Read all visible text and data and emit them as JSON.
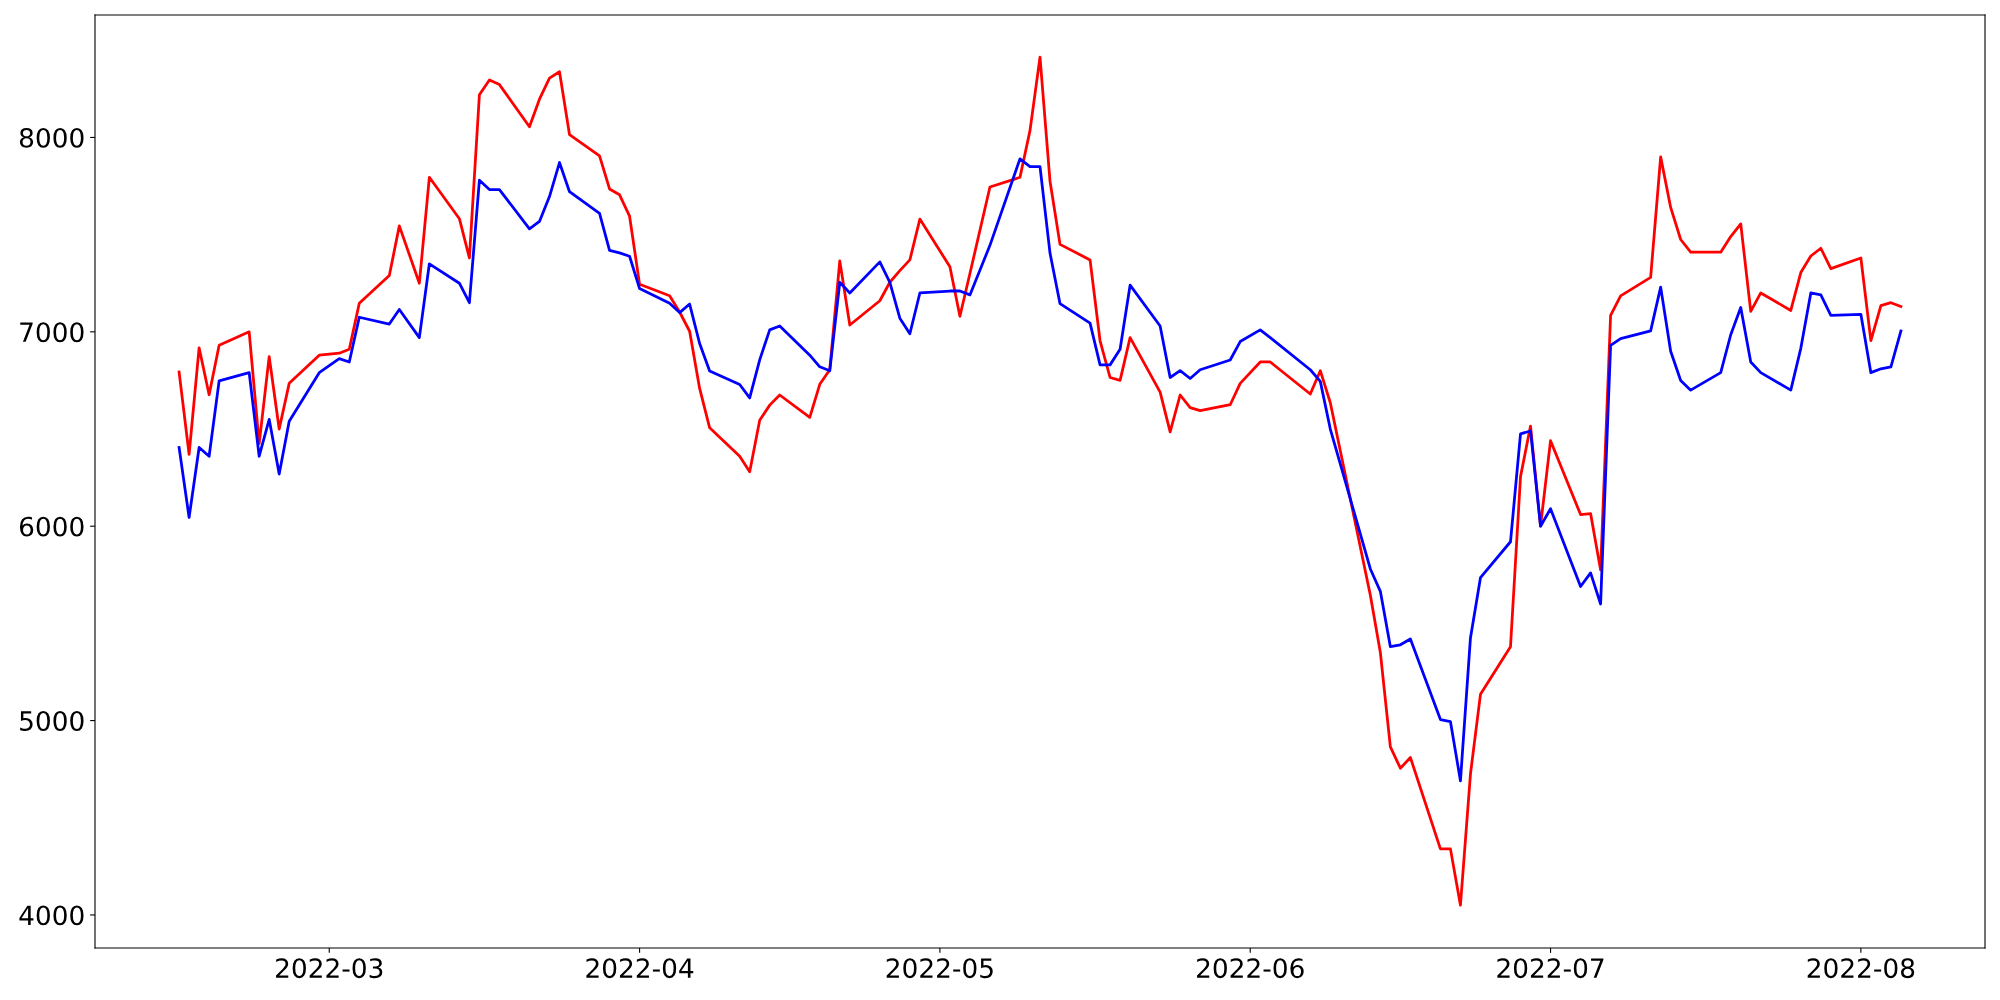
{
  "chart_data": {
    "type": "line",
    "x": [
      "2022-02-14",
      "2022-02-15",
      "2022-02-16",
      "2022-02-17",
      "2022-02-18",
      "2022-02-21",
      "2022-02-22",
      "2022-02-23",
      "2022-02-24",
      "2022-02-25",
      "2022-02-28",
      "2022-03-02",
      "2022-03-03",
      "2022-03-04",
      "2022-03-07",
      "2022-03-08",
      "2022-03-10",
      "2022-03-11",
      "2022-03-14",
      "2022-03-15",
      "2022-03-16",
      "2022-03-17",
      "2022-03-18",
      "2022-03-21",
      "2022-03-22",
      "2022-03-23",
      "2022-03-24",
      "2022-03-25",
      "2022-03-28",
      "2022-03-29",
      "2022-03-30",
      "2022-03-31",
      "2022-04-01",
      "2022-04-04",
      "2022-04-05",
      "2022-04-06",
      "2022-04-07",
      "2022-04-08",
      "2022-04-11",
      "2022-04-12",
      "2022-04-13",
      "2022-04-14",
      "2022-04-15",
      "2022-04-18",
      "2022-04-19",
      "2022-04-20",
      "2022-04-21",
      "2022-04-22",
      "2022-04-25",
      "2022-04-26",
      "2022-04-27",
      "2022-04-28",
      "2022-04-29",
      "2022-05-02",
      "2022-05-03",
      "2022-05-04",
      "2022-05-06",
      "2022-05-09",
      "2022-05-10",
      "2022-05-11",
      "2022-05-12",
      "2022-05-13",
      "2022-05-16",
      "2022-05-17",
      "2022-05-18",
      "2022-05-19",
      "2022-05-20",
      "2022-05-23",
      "2022-05-24",
      "2022-05-25",
      "2022-05-26",
      "2022-05-27",
      "2022-05-30",
      "2022-05-31",
      "2022-06-02",
      "2022-06-03",
      "2022-06-07",
      "2022-06-08",
      "2022-06-09",
      "2022-06-13",
      "2022-06-14",
      "2022-06-15",
      "2022-06-16",
      "2022-06-17",
      "2022-06-20",
      "2022-06-21",
      "2022-06-22",
      "2022-06-23",
      "2022-06-24",
      "2022-06-27",
      "2022-06-28",
      "2022-06-29",
      "2022-06-30",
      "2022-07-01",
      "2022-07-04",
      "2022-07-05",
      "2022-07-06",
      "2022-07-07",
      "2022-07-08",
      "2022-07-11",
      "2022-07-12",
      "2022-07-13",
      "2022-07-14",
      "2022-07-15",
      "2022-07-18",
      "2022-07-19",
      "2022-07-20",
      "2022-07-21",
      "2022-07-22",
      "2022-07-25",
      "2022-07-26",
      "2022-07-27",
      "2022-07-28",
      "2022-07-29",
      "2022-08-01",
      "2022-08-02",
      "2022-08-03",
      "2022-08-04",
      "2022-08-05"
    ],
    "series": [
      {
        "color": "#ff0000",
        "values": [
          6793,
          6370,
          6918,
          6676,
          6931,
          7000,
          6425,
          6872,
          6500,
          6735,
          6880,
          6890,
          6910,
          7147,
          7290,
          7545,
          7250,
          7795,
          7582,
          7380,
          8220,
          8296,
          8272,
          8055,
          8197,
          8305,
          8338,
          8015,
          7905,
          7735,
          7705,
          7595,
          7245,
          7186,
          7102,
          7003,
          6709,
          6506,
          6360,
          6280,
          6545,
          6623,
          6675,
          6560,
          6730,
          6805,
          7365,
          7035,
          7160,
          7255,
          7315,
          7370,
          7580,
          7335,
          7080,
          7300,
          7745,
          7795,
          8035,
          8413,
          7775,
          7450,
          7370,
          6954,
          6765,
          6750,
          6970,
          6690,
          6485,
          6675,
          6610,
          6595,
          6625,
          6735,
          6845,
          6845,
          6680,
          6800,
          6635,
          5645,
          5350,
          4865,
          4755,
          4810,
          4340,
          4340,
          4050,
          4725,
          5135,
          5380,
          6255,
          6515,
          6000,
          6440,
          6060,
          6065,
          5775,
          7085,
          7185,
          7280,
          7900,
          7640,
          7475,
          7410,
          7410,
          7490,
          7555,
          7105,
          7200,
          7110,
          7305,
          7390,
          7430,
          7325,
          7380,
          6955,
          7135,
          7150,
          7130
        ]
      },
      {
        "color": "#0000ff",
        "values": [
          6405,
          6045,
          6405,
          6360,
          6748,
          6790,
          6360,
          6550,
          6268,
          6540,
          6790,
          6862,
          6845,
          7075,
          7040,
          7115,
          6970,
          7350,
          7250,
          7150,
          7780,
          7732,
          7732,
          7530,
          7568,
          7696,
          7871,
          7721,
          7609,
          7419,
          7406,
          7389,
          7223,
          7147,
          7099,
          7143,
          6940,
          6799,
          6729,
          6660,
          6856,
          7010,
          7030,
          6880,
          6820,
          6800,
          7255,
          7200,
          7360,
          7255,
          7070,
          6990,
          7200,
          7210,
          7210,
          7190,
          7445,
          7890,
          7850,
          7850,
          7405,
          7145,
          7045,
          6830,
          6830,
          6910,
          7240,
          7030,
          6765,
          6800,
          6760,
          6805,
          6855,
          6950,
          7010,
          6970,
          6805,
          6745,
          6500,
          5780,
          5665,
          5380,
          5390,
          5420,
          5005,
          4995,
          4690,
          5425,
          5735,
          5920,
          6475,
          6490,
          6000,
          6090,
          5690,
          5760,
          5600,
          6930,
          6965,
          7005,
          7230,
          6900,
          6750,
          6700,
          6790,
          6985,
          7125,
          6845,
          6790,
          6700,
          6915,
          7200,
          7190,
          7085,
          7090,
          6790,
          6810,
          6820,
          7005
        ]
      }
    ],
    "xlim": [
      "2022-02-05T14:24",
      "2022-08-13T09:36"
    ],
    "xticks": [
      {
        "value": "2022-03",
        "label": "2022-03"
      },
      {
        "value": "2022-04",
        "label": "2022-04"
      },
      {
        "value": "2022-05",
        "label": "2022-05"
      },
      {
        "value": "2022-06",
        "label": "2022-06"
      },
      {
        "value": "2022-07",
        "label": "2022-07"
      },
      {
        "value": "2022-08",
        "label": "2022-08"
      }
    ],
    "ylim": [
      3830,
      8630
    ],
    "yticks": [
      4000,
      5000,
      6000,
      7000,
      8000
    ],
    "grid": false,
    "marker": "none",
    "line_style": "solid"
  }
}
